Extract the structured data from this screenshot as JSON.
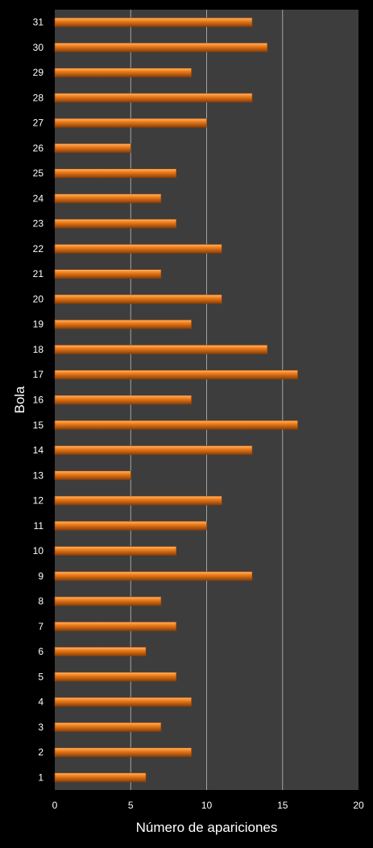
{
  "chart_data": {
    "type": "bar",
    "orientation": "horizontal",
    "title": "",
    "xlabel": "Número de apariciones",
    "ylabel": "Bola",
    "xlim": [
      0,
      20
    ],
    "x_ticks": [
      "0",
      "5",
      "10",
      "15",
      "20"
    ],
    "grid": "vertical",
    "legend": "none",
    "categories": [
      "1",
      "2",
      "3",
      "4",
      "5",
      "6",
      "7",
      "8",
      "9",
      "10",
      "11",
      "12",
      "13",
      "14",
      "15",
      "16",
      "17",
      "18",
      "19",
      "20",
      "21",
      "22",
      "23",
      "24",
      "25",
      "26",
      "27",
      "28",
      "29",
      "30",
      "31"
    ],
    "values": [
      6,
      9,
      7,
      9,
      8,
      6,
      8,
      7,
      13,
      8,
      10,
      11,
      5,
      13,
      16,
      9,
      16,
      14,
      9,
      11,
      7,
      11,
      8,
      7,
      8,
      5,
      10,
      13,
      9,
      14,
      13
    ],
    "colors": {
      "page_background": "#000000",
      "plot_background": "#3d3d3d",
      "bar": "#f07f1c",
      "bar_highlight": "#ffb56a",
      "bar_shadow": "#8a3e07",
      "gridline": "#a3a3a3",
      "text": "#ffffff"
    }
  }
}
